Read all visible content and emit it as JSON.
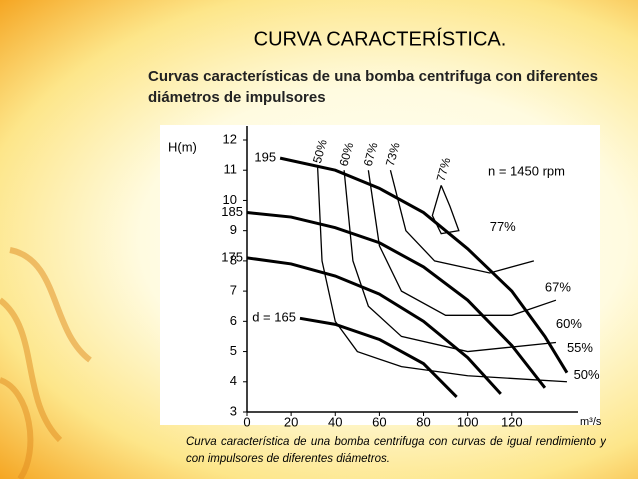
{
  "slide": {
    "title": "CURVA CARACTERÍSTICA.",
    "subtitle": "Curvas características de una bomba centrifuga con diferentes diámetros de impulsores",
    "caption": "Curva característica de una bomba centrifuga con curvas de igual rendimiento y con impulsores de diferentes diámetros."
  },
  "chart_data": {
    "type": "line",
    "y_label": "H(m)",
    "x_label": "m³/s",
    "annotation": "n = 1450 rpm",
    "xlim": [
      0,
      150
    ],
    "ylim": [
      3,
      12
    ],
    "xticks": [
      0,
      20,
      40,
      60,
      80,
      100,
      120
    ],
    "yticks": [
      3,
      4,
      5,
      6,
      7,
      8,
      9,
      10,
      11,
      12
    ],
    "series": [
      {
        "name": "195",
        "color": "#000000",
        "x": [
          15,
          40,
          60,
          80,
          100,
          120,
          135,
          145
        ],
        "values": [
          11.4,
          11,
          10.4,
          9.6,
          8.4,
          7,
          5.5,
          4.3
        ]
      },
      {
        "name": "185",
        "color": "#000000",
        "x": [
          0,
          20,
          40,
          60,
          80,
          100,
          120,
          135
        ],
        "values": [
          9.6,
          9.45,
          9.1,
          8.6,
          7.8,
          6.7,
          5.2,
          3.8
        ]
      },
      {
        "name": "175",
        "color": "#000000",
        "x": [
          0,
          20,
          40,
          60,
          80,
          100,
          115
        ],
        "values": [
          8.1,
          7.9,
          7.5,
          6.9,
          6,
          4.8,
          3.6
        ]
      },
      {
        "name": "d = 165",
        "color": "#000000",
        "x": [
          24,
          40,
          60,
          80,
          95
        ],
        "values": [
          6.1,
          5.9,
          5.4,
          4.6,
          3.5
        ]
      },
      {
        "name": "50%",
        "color": "#000000",
        "x": [
          32,
          34,
          40,
          50,
          70,
          100,
          145
        ],
        "values": [
          11.1,
          8,
          6,
          5,
          4.5,
          4.2,
          4
        ]
      },
      {
        "name": "60%",
        "color": "#000000",
        "x": [
          44,
          48,
          55,
          70,
          100,
          140
        ],
        "values": [
          11,
          8,
          6.5,
          5.5,
          5,
          5.3
        ]
      },
      {
        "name": "67%",
        "color": "#000000",
        "x": [
          55,
          60,
          70,
          90,
          120,
          140
        ],
        "values": [
          11,
          8.5,
          7,
          6.2,
          6.2,
          6.7
        ]
      },
      {
        "name": "73%",
        "color": "#000000",
        "x": [
          65,
          72,
          85,
          110,
          130
        ],
        "values": [
          11,
          9,
          8,
          7.6,
          8
        ]
      },
      {
        "name": "77%",
        "color": "#000000",
        "x": [
          88,
          84,
          88,
          96,
          92,
          88
        ],
        "values": [
          10.5,
          9.5,
          8.9,
          9,
          9.8,
          10.5
        ]
      }
    ],
    "right_labels": [
      "77%",
      "67%",
      "60%",
      "55%",
      "50%"
    ]
  }
}
